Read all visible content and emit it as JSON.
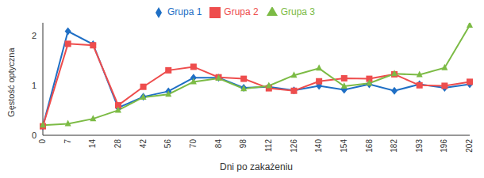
{
  "chart_data": {
    "type": "line",
    "x_label": "Dni po zakażeniu",
    "y_label": "Gęstość optyczna",
    "categories": [
      "0",
      "7",
      "14",
      "28",
      "42",
      "56",
      "70",
      "84",
      "98",
      "112",
      "126",
      "140",
      "154",
      "168",
      "182",
      "193",
      "196",
      "202"
    ],
    "series": [
      {
        "name": "Grupa 1",
        "color": "#1f6fc5",
        "marker": "diamond",
        "values": [
          0.18,
          2.08,
          1.82,
          0.55,
          0.77,
          0.88,
          1.15,
          1.15,
          0.95,
          0.97,
          0.9,
          0.99,
          0.91,
          1.02,
          0.89,
          1.02,
          0.95,
          1.02
        ]
      },
      {
        "name": "Grupa 2",
        "color": "#ee4d4d",
        "marker": "square",
        "values": [
          0.18,
          1.83,
          1.8,
          0.6,
          0.97,
          1.3,
          1.37,
          1.16,
          1.13,
          0.94,
          0.89,
          1.08,
          1.14,
          1.13,
          1.22,
          1.0,
          0.99,
          1.07
        ]
      },
      {
        "name": "Grupa 3",
        "color": "#7cbb45",
        "marker": "triangle",
        "values": [
          0.2,
          0.23,
          0.33,
          0.5,
          0.76,
          0.82,
          1.07,
          1.14,
          0.93,
          0.99,
          1.2,
          1.34,
          0.98,
          1.04,
          1.23,
          1.21,
          1.35,
          2.2
        ]
      }
    ],
    "ylim": [
      0,
      2.25
    ],
    "yticks": [
      0,
      1,
      2
    ],
    "grid": false,
    "legend": "top"
  }
}
